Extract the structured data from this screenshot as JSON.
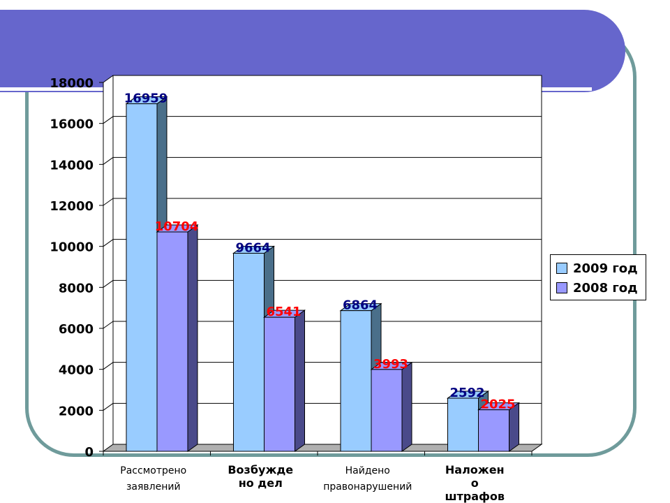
{
  "chart_data": {
    "type": "bar",
    "title": "",
    "xlabel": "",
    "ylabel": "",
    "ylim": [
      0,
      18000
    ],
    "yticks": [
      "0",
      "2000",
      "4000",
      "6000",
      "8000",
      "10000",
      "12000",
      "14000",
      "16000",
      "18000"
    ],
    "grid": true,
    "legend_position": "right",
    "categories": [
      [
        "Рассмотрено",
        "заявлений"
      ],
      [
        "Возбужде",
        "но дел"
      ],
      [
        "Найдено",
        "правонарушений"
      ],
      [
        "Наложен",
        "о",
        "штрафов"
      ]
    ],
    "category_bold": [
      false,
      true,
      false,
      true
    ],
    "series": [
      {
        "name": "2009 год",
        "values": [
          16959,
          9664,
          6864,
          2592
        ],
        "labels": [
          "16959",
          "9664",
          "6864",
          "2592"
        ],
        "color": "#99ccff",
        "side_color": "#4a6f8a",
        "label_color": "#000080"
      },
      {
        "name": "2008 год",
        "values": [
          10704,
          6541,
          3993,
          2025
        ],
        "labels": [
          "10704",
          "6541",
          "3993",
          "2025"
        ],
        "color": "#9999ff",
        "side_color": "#4a4a8a",
        "label_color": "#ff0000"
      }
    ]
  },
  "colors": {
    "title_band": "#6666cc",
    "frame": "#6f9b9b"
  }
}
